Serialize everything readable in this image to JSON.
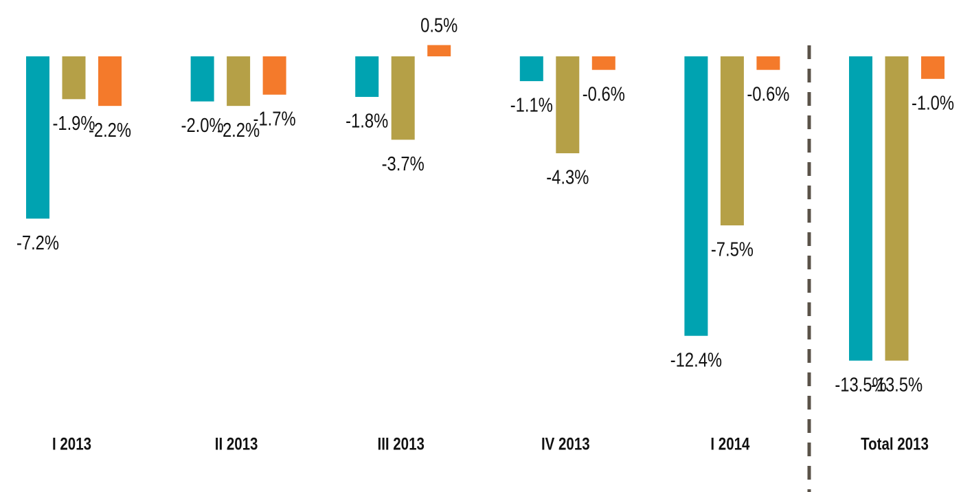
{
  "chart_data": {
    "type": "bar",
    "categories": [
      "I 2013",
      "II 2013",
      "III 2013",
      "IV 2013",
      "I 2014",
      "Total 2013"
    ],
    "series": [
      {
        "color": "#00a3b1",
        "values": [
          -7.2,
          -2.0,
          -1.8,
          -1.1,
          -12.4,
          -13.5
        ],
        "value_labels": [
          "-7.2%",
          "-2.0%",
          "-1.8%",
          "-1.1%",
          "-12.4%",
          "-13.5%"
        ]
      },
      {
        "color": "#b5a047",
        "values": [
          -1.9,
          -2.2,
          -3.7,
          -4.3,
          -7.5,
          -13.5
        ],
        "value_labels": [
          "-1.9%",
          "-2.2%",
          "-3.7%",
          "-4.3%",
          "-7.5%",
          "-13.5%"
        ]
      },
      {
        "color": "#f47a2b",
        "values": [
          -2.2,
          -1.7,
          0.5,
          -0.6,
          -0.6,
          -1.0
        ],
        "value_labels": [
          "-2.2%",
          "-1.7%",
          "0.5%",
          "-0.6%",
          "-0.6%",
          "-1.0%"
        ]
      }
    ],
    "ylim": [
      -16,
      2
    ]
  }
}
